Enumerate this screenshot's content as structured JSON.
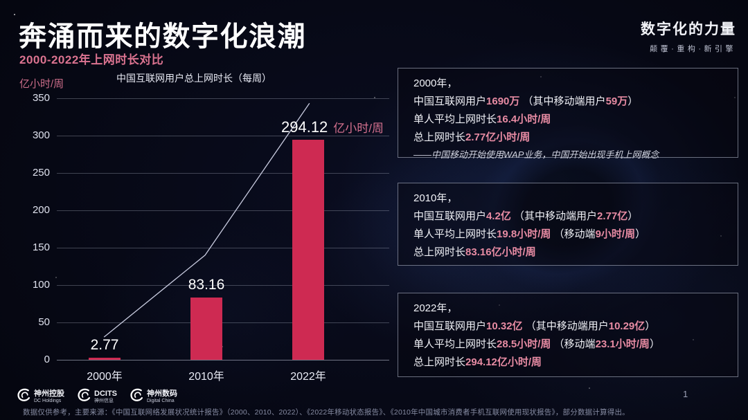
{
  "slide": {
    "title": "奔涌而来的数字化浪潮",
    "subtitle": "2000-2022年上网时长对比",
    "brand_title": "数字化的力量",
    "brand_tagline": "颠覆·重构·新引擎",
    "page_number": "1",
    "footnote": "数据仅供参考，主要来源：《中国互联网络发展状况统计报告》（2000、2010、2022）、《2022年移动状态报告》、《2010年中国城市消费者手机互联网使用现状报告》，部分数据计算得出。"
  },
  "logos": [
    {
      "line1": "神州控股",
      "line2": "DC Holdings"
    },
    {
      "line1": "DCITS",
      "line2": "神州信息"
    },
    {
      "line1": "神州数码",
      "line2": "Digital China"
    }
  ],
  "chart_data": {
    "type": "bar",
    "title": "中国互联网用户总上网时长（每周）",
    "ylabel": "亿小时/周",
    "categories": [
      "2000年",
      "2010年",
      "2022年"
    ],
    "values": [
      2.77,
      83.16,
      294.12
    ],
    "bar_labels": [
      "2.77",
      "83.16",
      "294.12"
    ],
    "last_bar_label_unit": "亿小时/周",
    "yticks": [
      0,
      50,
      100,
      150,
      200,
      250,
      300,
      350
    ],
    "ylim": [
      0,
      350
    ],
    "grid": true,
    "legend": false,
    "colors": {
      "bar": "#ce2a52",
      "accent_pink": "#e78ba3",
      "trend_line": "#c7cade"
    },
    "trend_line": {
      "points_frac": [
        [
          0.142,
          0.913
        ],
        [
          0.446,
          0.6
        ],
        [
          0.76,
          0.019
        ]
      ]
    }
  },
  "panels": [
    {
      "year": "2000年，",
      "lines": [
        [
          {
            "t": "中国互联网用户"
          },
          {
            "t": "1690万",
            "a": true
          },
          {
            "t": " （其中移动端用户"
          },
          {
            "t": "59万",
            "a": true
          },
          {
            "t": "）"
          }
        ],
        [
          {
            "t": "单人平均上网时长"
          },
          {
            "t": "16.4小时/周",
            "a": true
          }
        ],
        [
          {
            "t": "总上网时长"
          },
          {
            "t": "2.77亿小时/周",
            "a": true
          }
        ]
      ],
      "note": "——中国移动开始使用WAP业务，中国开始出现手机上网概念"
    },
    {
      "year": "2010年，",
      "lines": [
        [
          {
            "t": "中国互联网用户"
          },
          {
            "t": "4.2亿",
            "a": true
          },
          {
            "t": " （其中移动端用户"
          },
          {
            "t": "2.77亿",
            "a": true
          },
          {
            "t": "）"
          }
        ],
        [
          {
            "t": "单人平均上网时长"
          },
          {
            "t": "19.8小时/周",
            "a": true
          },
          {
            "t": " （移动端"
          },
          {
            "t": "9小时/周",
            "a": true
          },
          {
            "t": "）"
          }
        ],
        [
          {
            "t": "总上网时长"
          },
          {
            "t": "83.16亿小时/周",
            "a": true
          }
        ]
      ],
      "note": ""
    },
    {
      "year": "2022年，",
      "lines": [
        [
          {
            "t": "中国互联网用户"
          },
          {
            "t": "10.32亿",
            "a": true
          },
          {
            "t": " （其中移动端用户"
          },
          {
            "t": "10.29亿",
            "a": true
          },
          {
            "t": "）"
          }
        ],
        [
          {
            "t": "单人平均上网时长"
          },
          {
            "t": "28.5小时/周",
            "a": true
          },
          {
            "t": " （移动端"
          },
          {
            "t": "23.1小时/周",
            "a": true
          },
          {
            "t": "）"
          }
        ],
        [
          {
            "t": "总上网时长"
          },
          {
            "t": "294.12亿小时/周",
            "a": true
          }
        ]
      ],
      "note": ""
    }
  ]
}
